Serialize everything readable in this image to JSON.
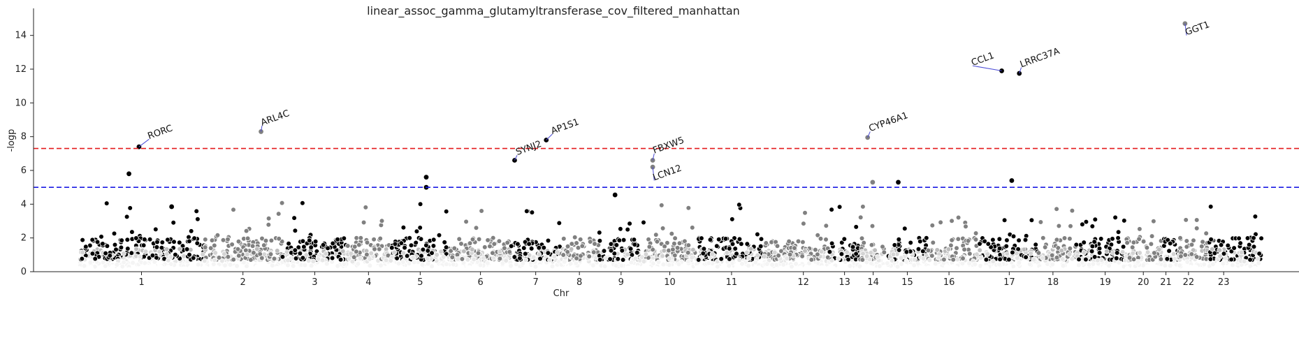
{
  "chart_data": {
    "type": "scatter",
    "title": "linear_assoc_gamma_glutamyltransferase_cov_filtered_manhattan",
    "xlabel": "Chr",
    "ylabel": "-logp",
    "ylim": [
      0,
      15.6
    ],
    "y_ticks": [
      0,
      2,
      4,
      6,
      8,
      10,
      12,
      14
    ],
    "grid": false,
    "chromosomes": [
      {
        "label": "1",
        "start": 0,
        "end": 250,
        "center": 125
      },
      {
        "label": "2",
        "start": 250,
        "end": 405,
        "center": 327
      },
      {
        "label": "3",
        "start": 405,
        "end": 535,
        "center": 470
      },
      {
        "label": "4",
        "start": 535,
        "end": 620,
        "center": 577
      },
      {
        "label": "5",
        "start": 620,
        "end": 740,
        "center": 680
      },
      {
        "label": "6",
        "start": 740,
        "end": 860,
        "center": 800
      },
      {
        "label": "7",
        "start": 860,
        "end": 960,
        "center": 910
      },
      {
        "label": "8",
        "start": 960,
        "end": 1035,
        "center": 997
      },
      {
        "label": "9",
        "start": 1035,
        "end": 1125,
        "center": 1080
      },
      {
        "label": "10",
        "start": 1125,
        "end": 1230,
        "center": 1177
      },
      {
        "label": "11",
        "start": 1230,
        "end": 1365,
        "center": 1300
      },
      {
        "label": "12",
        "start": 1365,
        "end": 1495,
        "center": 1443
      },
      {
        "label": "13",
        "start": 1495,
        "end": 1555,
        "center": 1525
      },
      {
        "label": "14",
        "start": 1555,
        "end": 1610,
        "center": 1582
      },
      {
        "label": "15",
        "start": 1610,
        "end": 1690,
        "center": 1650
      },
      {
        "label": "16",
        "start": 1690,
        "end": 1790,
        "center": 1733
      },
      {
        "label": "17",
        "start": 1790,
        "end": 1910,
        "center": 1853
      },
      {
        "label": "18",
        "start": 1910,
        "end": 1985,
        "center": 1940
      },
      {
        "label": "19",
        "start": 1985,
        "end": 2085,
        "center": 2044
      },
      {
        "label": "20",
        "start": 2085,
        "end": 2160,
        "center": 2120
      },
      {
        "label": "21",
        "start": 2160,
        "end": 2190,
        "center": 2165
      },
      {
        "label": "22",
        "start": 2190,
        "end": 2250,
        "center": 2210
      },
      {
        "label": "23",
        "start": 2250,
        "end": 2355,
        "center": 2280
      }
    ],
    "thresholds": [
      {
        "value": 7.3,
        "color": "#e41a1c",
        "style": "dashed"
      },
      {
        "value": 5.0,
        "color": "#1a1ae4",
        "style": "dashed"
      }
    ],
    "series_colors": [
      "#000000",
      "#808080"
    ],
    "hits": [
      {
        "x": 100,
        "y": 5.8
      },
      {
        "x": 120,
        "y": 7.4
      },
      {
        "x": 185,
        "y": 3.85
      },
      {
        "x": 363,
        "y": 8.3
      },
      {
        "x": 692,
        "y": 5.6
      },
      {
        "x": 692,
        "y": 5.0
      },
      {
        "x": 868,
        "y": 6.6
      },
      {
        "x": 931,
        "y": 7.8
      },
      {
        "x": 1068,
        "y": 4.55
      },
      {
        "x": 1143,
        "y": 6.6
      },
      {
        "x": 1143,
        "y": 6.2
      },
      {
        "x": 1571,
        "y": 7.95
      },
      {
        "x": 1581,
        "y": 5.3
      },
      {
        "x": 1632,
        "y": 5.3
      },
      {
        "x": 1838,
        "y": 11.9
      },
      {
        "x": 1858,
        "y": 5.4
      },
      {
        "x": 1873,
        "y": 11.75
      },
      {
        "x": 2203,
        "y": 14.7
      }
    ],
    "annotations": [
      {
        "text": "RORC",
        "x": 120,
        "y": 7.4,
        "tx": 140,
        "ty": 7.85
      },
      {
        "text": "ARL4C",
        "x": 363,
        "y": 8.3,
        "tx": 365,
        "ty": 8.65
      },
      {
        "text": "SYNJ2",
        "x": 868,
        "y": 6.6,
        "tx": 873,
        "ty": 6.9
      },
      {
        "text": "AP1S1",
        "x": 931,
        "y": 7.8,
        "tx": 943,
        "ty": 8.15
      },
      {
        "text": "FBXW5",
        "x": 1143,
        "y": 6.6,
        "tx": 1146,
        "ty": 7.0
      },
      {
        "text": "LCN12",
        "x": 1143,
        "y": 6.2,
        "tx": 1146,
        "ty": 5.4
      },
      {
        "text": "CYP46A1",
        "x": 1571,
        "y": 7.95,
        "tx": 1576,
        "ty": 8.3
      },
      {
        "text": "CCL1",
        "x": 1838,
        "y": 11.9,
        "tx": 1780,
        "ty": 12.2
      },
      {
        "text": "LRRC37A",
        "x": 1873,
        "y": 11.75,
        "tx": 1877,
        "ty": 12.1
      },
      {
        "text": "GGT1",
        "x": 2203,
        "y": 14.7,
        "tx": 2206,
        "ty": 14.0
      }
    ]
  }
}
